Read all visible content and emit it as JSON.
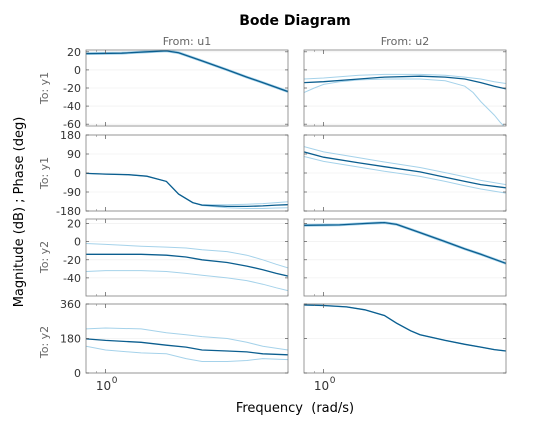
{
  "chart_data": {
    "type": "line",
    "title": "Bode Diagram",
    "xlabel": "Frequency  (rad/s)",
    "ylabel": "Magnitude (dB) ; Phase (deg)",
    "xscale": "log",
    "xlim": [
      0.8,
      8
    ],
    "xticks": [
      {
        "value": 1,
        "label": "10",
        "exp": "0"
      }
    ],
    "columns": [
      {
        "label": "From: u1"
      },
      {
        "label": "From: u2"
      }
    ],
    "rows": [
      {
        "label": "To: y1",
        "quantity": "magnitude",
        "ylim": [
          -62,
          22
        ],
        "yticks": [
          20,
          0,
          -20,
          -40,
          -60
        ]
      },
      {
        "label": "To: y1",
        "quantity": "phase",
        "ylim": [
          -180,
          180
        ],
        "yticks": [
          180,
          90,
          0,
          -90,
          -180
        ]
      },
      {
        "label": "To: y2",
        "quantity": "magnitude",
        "ylim": [
          -60,
          25
        ],
        "yticks": [
          20,
          0,
          -20,
          -40
        ]
      },
      {
        "label": "To: y2",
        "quantity": "phase",
        "ylim": [
          0,
          360
        ],
        "yticks": [
          360,
          180,
          0
        ]
      }
    ],
    "colors": {
      "nominal": "#0b5e8f",
      "bounds": "#a5d2ea",
      "axis": "#7f7f7f",
      "grid": "#ececec"
    },
    "panels": [
      {
        "row": 0,
        "col": 0,
        "series": [
          {
            "role": "nominal",
            "x": [
              0.8,
              1.2,
              1.6,
              2.0,
              2.3,
              3.0,
              4.0,
              5.0,
              6.0,
              8.0
            ],
            "y": [
              18,
              18.5,
              20,
              21,
              19,
              10,
              0,
              -8,
              -14,
              -24
            ]
          },
          {
            "role": "bound",
            "x": [
              0.8,
              1.2,
              1.6,
              2.0,
              2.3,
              3.0,
              4.0,
              5.0,
              6.0,
              8.0
            ],
            "y": [
              19,
              19.5,
              21,
              22,
              20,
              11,
              1,
              -7,
              -13,
              -23
            ]
          },
          {
            "role": "bound",
            "x": [
              0.8,
              1.2,
              1.6,
              2.0,
              2.3,
              3.0,
              4.0,
              5.0,
              6.0,
              8.0
            ],
            "y": [
              17,
              17.5,
              19,
              20,
              18,
              9,
              -1,
              -9,
              -15,
              -25
            ]
          }
        ]
      },
      {
        "row": 0,
        "col": 1,
        "series": [
          {
            "role": "nominal",
            "x": [
              0.8,
              1.0,
              1.5,
              2.0,
              3.0,
              4.0,
              5.0,
              6.0,
              7.0,
              8.0
            ],
            "y": [
              -14,
              -13,
              -10,
              -8,
              -7,
              -8,
              -10,
              -14,
              -18,
              -21
            ]
          },
          {
            "role": "bound",
            "x": [
              0.8,
              1.0,
              1.5,
              2.0,
              3.0,
              4.0,
              5.0,
              6.0,
              7.0,
              8.0
            ],
            "y": [
              -10,
              -9,
              -6,
              -5,
              -5,
              -6,
              -8,
              -10,
              -13,
              -15
            ]
          },
          {
            "role": "bound",
            "x": [
              0.8,
              0.9,
              1.0,
              1.2,
              1.5,
              2.0,
              3.0,
              4.0,
              5.0,
              5.5,
              6.0,
              7.0,
              7.5,
              7.8
            ],
            "y": [
              -25,
              -20,
              -16,
              -13,
              -11,
              -10,
              -10,
              -12,
              -18,
              -25,
              -35,
              -50,
              -58,
              -62
            ]
          }
        ]
      },
      {
        "row": 1,
        "col": 0,
        "series": [
          {
            "role": "nominal",
            "x": [
              0.8,
              1.0,
              1.3,
              1.6,
              2.0,
              2.3,
              2.7,
              3.0,
              4.0,
              5.0,
              6.0,
              7.0,
              8.0
            ],
            "y": [
              -2,
              -5,
              -8,
              -15,
              -40,
              -100,
              -140,
              -152,
              -158,
              -158,
              -156,
              -152,
              -150
            ]
          },
          {
            "role": "bound",
            "x": [
              0.8,
              1.0,
              1.3,
              1.6,
              2.0,
              2.3,
              2.7,
              3.0,
              4.0,
              5.0,
              6.0,
              7.0,
              8.0
            ],
            "y": [
              -2,
              -5,
              -8,
              -15,
              -40,
              -100,
              -140,
              -150,
              -150,
              -148,
              -145,
              -140,
              -136
            ]
          },
          {
            "role": "bound",
            "x": [
              0.8,
              1.0,
              1.3,
              1.6,
              2.0,
              2.3,
              2.7,
              3.0,
              4.0,
              5.0,
              6.0,
              7.0,
              8.0
            ],
            "y": [
              -2,
              -5,
              -8,
              -15,
              -40,
              -100,
              -140,
              -154,
              -165,
              -168,
              -168,
              -166,
              -165
            ]
          }
        ]
      },
      {
        "row": 1,
        "col": 1,
        "series": [
          {
            "role": "nominal",
            "x": [
              0.8,
              1.0,
              1.5,
              2.0,
              3.0,
              4.0,
              5.0,
              6.0,
              8.0
            ],
            "y": [
              100,
              75,
              48,
              30,
              5,
              -20,
              -40,
              -55,
              -70
            ]
          },
          {
            "role": "bound",
            "x": [
              0.8,
              1.0,
              1.5,
              2.0,
              3.0,
              4.0,
              5.0,
              6.0,
              8.0
            ],
            "y": [
              125,
              100,
              72,
              52,
              26,
              2,
              -18,
              -35,
              -55
            ]
          },
          {
            "role": "bound",
            "x": [
              0.8,
              1.0,
              1.5,
              2.0,
              3.0,
              4.0,
              5.0,
              6.0,
              8.0
            ],
            "y": [
              78,
              55,
              28,
              8,
              -16,
              -40,
              -60,
              -76,
              -95
            ]
          }
        ]
      },
      {
        "row": 2,
        "col": 0,
        "series": [
          {
            "role": "nominal",
            "x": [
              0.8,
              1.0,
              1.5,
              2.0,
              2.5,
              3.0,
              4.0,
              5.0,
              6.0,
              7.0,
              8.0
            ],
            "y": [
              -14,
              -14,
              -14,
              -15,
              -17,
              -20,
              -23,
              -27,
              -31,
              -35,
              -38
            ]
          },
          {
            "role": "bound",
            "x": [
              0.8,
              1.0,
              1.5,
              2.0,
              2.5,
              3.0,
              4.0,
              5.0,
              6.0,
              7.0,
              8.0
            ],
            "y": [
              -2,
              -3,
              -5,
              -6,
              -7,
              -9,
              -11,
              -15,
              -20,
              -25,
              -29
            ]
          },
          {
            "role": "bound",
            "x": [
              0.8,
              1.0,
              1.5,
              2.0,
              2.5,
              3.0,
              4.0,
              5.0,
              6.0,
              7.0,
              8.0
            ],
            "y": [
              -33,
              -32,
              -32,
              -33,
              -35,
              -37,
              -40,
              -43,
              -47,
              -51,
              -54
            ]
          }
        ]
      },
      {
        "row": 2,
        "col": 1,
        "series": [
          {
            "role": "nominal",
            "x": [
              0.8,
              1.2,
              1.6,
              2.0,
              2.3,
              3.0,
              4.0,
              5.0,
              6.0,
              8.0
            ],
            "y": [
              18,
              18.5,
              20,
              21,
              19,
              10,
              0,
              -8,
              -14,
              -24
            ]
          },
          {
            "role": "bound",
            "x": [
              0.8,
              1.2,
              1.6,
              2.0,
              2.3,
              3.0,
              4.0,
              5.0,
              6.0,
              8.0
            ],
            "y": [
              19,
              19.5,
              21,
              22,
              20,
              11,
              1,
              -7,
              -13,
              -23
            ]
          },
          {
            "role": "bound",
            "x": [
              0.8,
              1.2,
              1.6,
              2.0,
              2.3,
              3.0,
              4.0,
              5.0,
              6.0,
              8.0
            ],
            "y": [
              17,
              17.5,
              19,
              20,
              18,
              9,
              -1,
              -9,
              -15,
              -25
            ]
          }
        ]
      },
      {
        "row": 3,
        "col": 0,
        "series": [
          {
            "role": "nominal",
            "x": [
              0.8,
              1.0,
              1.5,
              2.0,
              2.5,
              3.0,
              4.0,
              5.0,
              6.0,
              8.0
            ],
            "y": [
              178,
              170,
              160,
              145,
              135,
              120,
              115,
              110,
              100,
              95
            ]
          },
          {
            "role": "bound",
            "x": [
              0.8,
              1.0,
              1.5,
              2.0,
              2.5,
              3.0,
              4.0,
              5.0,
              6.0,
              8.0
            ],
            "y": [
              230,
              235,
              230,
              210,
              200,
              190,
              180,
              160,
              140,
              120
            ]
          },
          {
            "role": "bound",
            "x": [
              0.8,
              1.0,
              1.5,
              2.0,
              2.5,
              3.0,
              4.0,
              5.0,
              6.0,
              8.0
            ],
            "y": [
              140,
              120,
              105,
              100,
              75,
              60,
              60,
              65,
              75,
              70
            ]
          }
        ]
      },
      {
        "row": 3,
        "col": 1,
        "series": [
          {
            "role": "nominal",
            "x": [
              0.8,
              1.0,
              1.3,
              1.6,
              2.0,
              2.3,
              2.7,
              3.0,
              4.0,
              5.0,
              6.0,
              7.0,
              8.0
            ],
            "y": [
              355,
              352,
              345,
              330,
              300,
              260,
              220,
              200,
              170,
              150,
              135,
              122,
              115
            ]
          },
          {
            "role": "bound",
            "x": [
              0.8,
              1.0,
              1.3,
              1.6,
              2.0,
              2.3,
              2.7,
              3.0,
              4.0,
              5.0,
              6.0,
              7.0,
              8.0
            ],
            "y": [
              356,
              353,
              346,
              331,
              301,
              261,
              221,
              201,
              171,
              151,
              136,
              123,
              116
            ]
          },
          {
            "role": "bound",
            "x": [
              0.8,
              1.0,
              1.3,
              1.6,
              2.0,
              2.3,
              2.7,
              3.0,
              4.0,
              5.0,
              6.0,
              7.0,
              8.0
            ],
            "y": [
              354,
              351,
              344,
              329,
              299,
              259,
              219,
              199,
              169,
              149,
              134,
              121,
              114
            ]
          }
        ]
      }
    ]
  }
}
